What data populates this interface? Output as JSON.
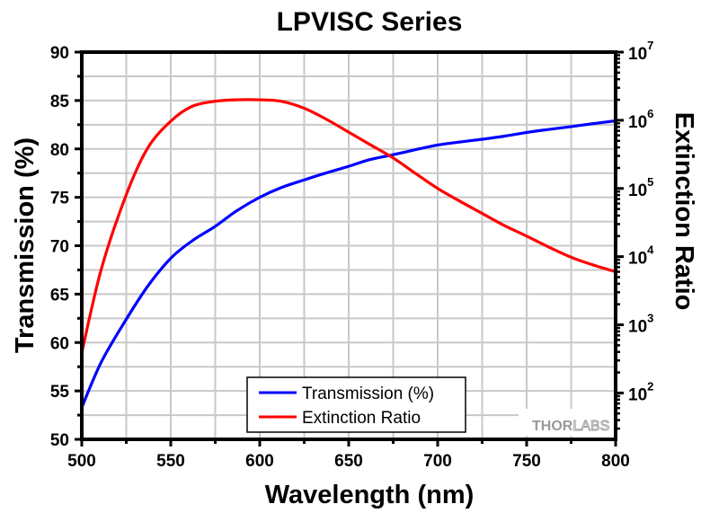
{
  "chart_data": {
    "type": "line",
    "title": "LPVISC Series",
    "xlabel": "Wavelength (nm)",
    "ylabel": "Transmission (%)",
    "y2label": "Extinction Ratio",
    "xlim": [
      500,
      800
    ],
    "ylim": [
      50,
      90
    ],
    "y2lim_log10": [
      1.32,
      7
    ],
    "y2scale": "log",
    "grid": true,
    "legend_position": "bottom-center",
    "x_ticks": [
      500,
      550,
      600,
      650,
      700,
      750,
      800
    ],
    "x_tick_labels": [
      "500",
      "550",
      "600",
      "650",
      "700",
      "750",
      "800"
    ],
    "y_ticks": [
      50,
      55,
      60,
      65,
      70,
      75,
      80,
      85,
      90
    ],
    "y_tick_labels": [
      "50",
      "55",
      "60",
      "65",
      "70",
      "75",
      "80",
      "85",
      "90"
    ],
    "y2_ticks": [
      {
        "base": "10",
        "exp": "2",
        "value": 100
      },
      {
        "base": "10",
        "exp": "3",
        "value": 1000
      },
      {
        "base": "10",
        "exp": "4",
        "value": 10000
      },
      {
        "base": "10",
        "exp": "5",
        "value": 100000
      },
      {
        "base": "10",
        "exp": "6",
        "value": 1000000
      },
      {
        "base": "10",
        "exp": "7",
        "value": 10000000
      }
    ],
    "x": [
      500,
      511,
      525,
      537,
      550,
      562,
      575,
      587,
      600,
      612,
      625,
      637,
      650,
      662,
      675,
      687,
      700,
      712,
      725,
      737,
      750,
      762,
      775,
      787,
      800
    ],
    "series": [
      {
        "name": "Transmission (%)",
        "axis": "left",
        "color": "#0000ff",
        "values": [
          53.3,
          58.0,
          62.4,
          65.8,
          68.7,
          70.5,
          72.0,
          73.6,
          75.0,
          76.0,
          76.8,
          77.5,
          78.2,
          78.9,
          79.4,
          79.9,
          80.4,
          80.7,
          81.0,
          81.3,
          81.7,
          82.0,
          82.3,
          82.6,
          82.9
        ]
      },
      {
        "name": "Extinction Ratio",
        "axis": "right",
        "color": "#ff0000",
        "values": [
          390,
          6600,
          81000,
          390000,
          970000,
          1600000,
          1900000,
          2000000,
          2000000,
          1900000,
          1500000,
          1050000,
          670000,
          440000,
          280000,
          170000,
          100000,
          66000,
          43000,
          29000,
          20000,
          14000,
          9800,
          7600,
          6000
        ]
      }
    ],
    "legend": [
      {
        "label": "Transmission (%)",
        "color": "#0000ff"
      },
      {
        "label": "Extinction Ratio",
        "color": "#ff0000"
      }
    ]
  },
  "watermark": {
    "part1": "THOR",
    "part2": "LABS"
  },
  "colors": {
    "grid": "#c8c8c8",
    "axis": "#000000",
    "blue": "#0000ff",
    "red": "#ff0000",
    "logo": "#9a9a9a"
  }
}
